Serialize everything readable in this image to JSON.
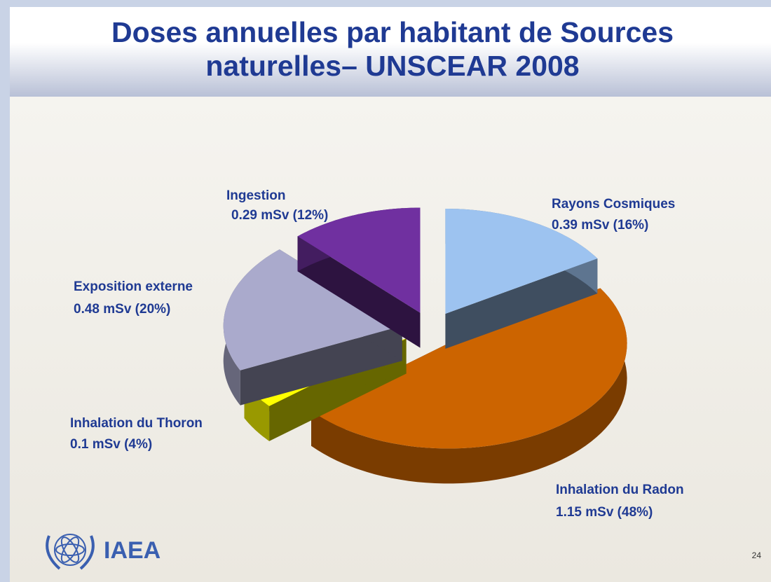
{
  "chart_data": {
    "type": "pie",
    "title": "Doses annuelles par habitant de Sources naturelles– UNSCEAR 2008",
    "categories": [
      "Rayons Cosmiques",
      "Inhalation du Radon",
      "Inhalation du Thoron",
      "Exposition externe",
      "Ingestion"
    ],
    "values": [
      0.39,
      1.15,
      0.1,
      0.48,
      0.29
    ],
    "value_labels": [
      "0.39 mSv (16%)",
      "1.15 mSv (48%)",
      "0.1 mSv (4%)",
      "0.48 mSv (20%)",
      "0.29 mSv (12%)"
    ],
    "colors": [
      "#9dc3f0",
      "#cc6400",
      "#ffff00",
      "#aaaacc",
      "#7030a0"
    ]
  },
  "footer": {
    "logo": "IAEA",
    "page_number": 24
  }
}
